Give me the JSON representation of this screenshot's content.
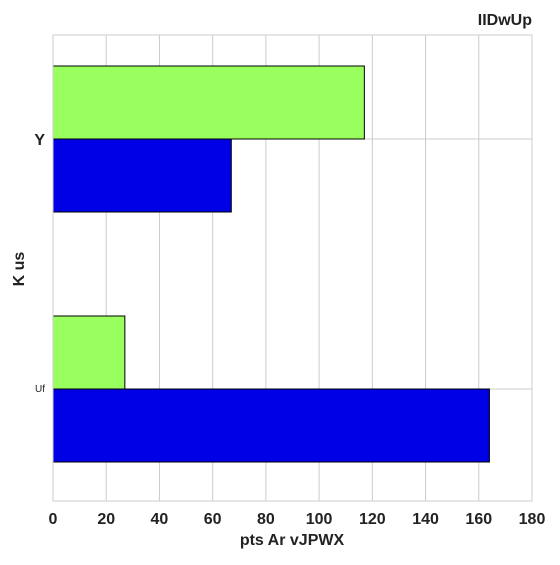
{
  "chart_data": {
    "type": "bar",
    "orientation": "horizontal",
    "title": "IIDwUp",
    "xlabel": "pts Ar vJPWX",
    "ylabel": "K us",
    "categories": [
      "Uf",
      "Y"
    ],
    "category_label_styles": {
      "Uf": "small",
      "Y": "large"
    },
    "series": [
      {
        "color": "#0000e6",
        "values": [
          164,
          67
        ]
      },
      {
        "color": "#99ff5e",
        "values": [
          27,
          117
        ]
      }
    ],
    "xlim": [
      0,
      180
    ],
    "xticks": [
      "0",
      "20",
      "40",
      "60",
      "80",
      "100",
      "120",
      "140",
      "160",
      "180"
    ],
    "grid": true,
    "title_position": "top-right"
  }
}
